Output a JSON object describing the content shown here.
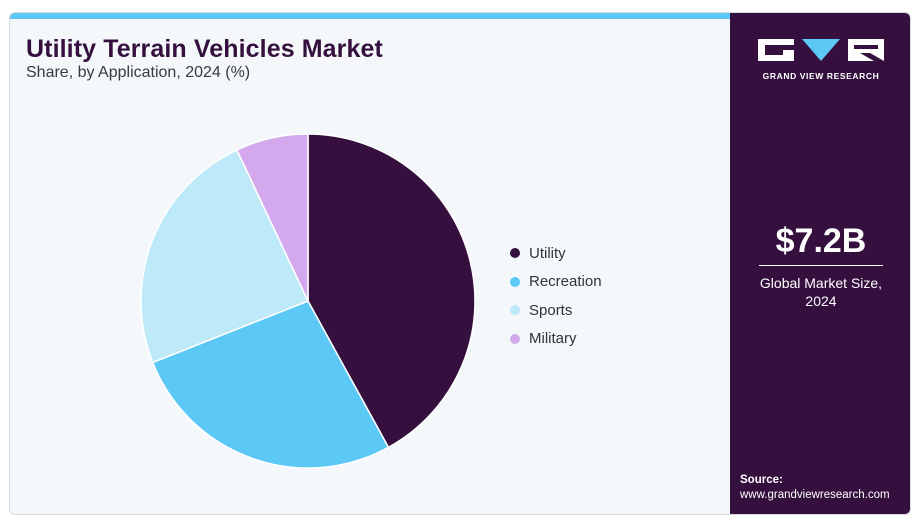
{
  "header": {
    "title": "Utility Terrain Vehicles Market",
    "subtitle": "Share, by Application, 2024 (%)"
  },
  "chart_data": {
    "type": "pie",
    "title": "Utility Terrain Vehicles Market",
    "subtitle": "Share, by Application, 2024 (%)",
    "categories": [
      "Utility",
      "Recreation",
      "Sports",
      "Military"
    ],
    "values": [
      42,
      27,
      24,
      7
    ],
    "colors": [
      "#35103f",
      "#5bc8f5",
      "#bde9f9",
      "#d3a8ec"
    ],
    "start_angle": "top (12 o'clock), clockwise",
    "legend": "right"
  },
  "sidebar": {
    "brand": "GRAND VIEW RESEARCH",
    "stat_value": "$7.2B",
    "stat_label_line1": "Global Market Size,",
    "stat_label_line2": "2024",
    "source_label": "Source:",
    "source_url": "www.grandviewresearch.com",
    "colors": {
      "background": "#35103f",
      "accent": "#5bc8f5"
    }
  }
}
